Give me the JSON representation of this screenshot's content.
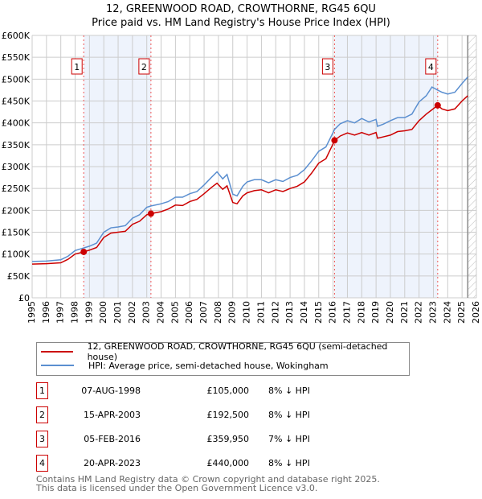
{
  "title": "12, GREENWOOD ROAD, CROWTHORNE, RG45 6QU",
  "subtitle": "Price paid vs. HM Land Registry's House Price Index (HPI)",
  "chart_data": {
    "type": "line",
    "xlim": [
      1995,
      2026
    ],
    "ylim": [
      0,
      600000
    ],
    "x_ticks": [
      "1995",
      "1996",
      "1997",
      "1998",
      "1999",
      "2000",
      "2001",
      "2002",
      "2003",
      "2004",
      "2005",
      "2006",
      "2007",
      "2008",
      "2009",
      "2010",
      "2011",
      "2012",
      "2013",
      "2014",
      "2015",
      "2016",
      "2017",
      "2018",
      "2019",
      "2020",
      "2021",
      "2022",
      "2023",
      "2024",
      "2025",
      "2026"
    ],
    "y_ticks": [
      {
        "v": 0,
        "l": "£0"
      },
      {
        "v": 50000,
        "l": "£50K"
      },
      {
        "v": 100000,
        "l": "£100K"
      },
      {
        "v": 150000,
        "l": "£150K"
      },
      {
        "v": 200000,
        "l": "£200K"
      },
      {
        "v": 250000,
        "l": "£250K"
      },
      {
        "v": 300000,
        "l": "£300K"
      },
      {
        "v": 350000,
        "l": "£350K"
      },
      {
        "v": 400000,
        "l": "£400K"
      },
      {
        "v": 450000,
        "l": "£450K"
      },
      {
        "v": 500000,
        "l": "£500K"
      },
      {
        "v": 550000,
        "l": "£550K"
      },
      {
        "v": 600000,
        "l": "£600K"
      }
    ],
    "data_end": 2025.4,
    "shaded_ranges": [
      [
        1998.6,
        2003.29
      ],
      [
        2016.1,
        2023.3
      ]
    ],
    "series": [
      {
        "name": "12, GREENWOOD ROAD, CROWTHORNE, RG45 6QU (semi-detached house)",
        "color": "#cc0000",
        "x": [
          1995,
          1996,
          1997,
          1997.5,
          1998,
          1998.6,
          1999,
          1999.5,
          2000,
          2000.5,
          2001,
          2001.5,
          2002,
          2002.5,
          2003,
          2003.3,
          2004,
          2004.5,
          2005,
          2005.5,
          2006,
          2006.5,
          2007,
          2007.5,
          2007.9,
          2008.3,
          2008.6,
          2009,
          2009.3,
          2009.7,
          2010,
          2010.5,
          2011,
          2011.5,
          2012,
          2012.5,
          2013,
          2013.5,
          2014,
          2014.5,
          2015,
          2015.5,
          2016,
          2016.1,
          2016.5,
          2017,
          2017.5,
          2018,
          2018.5,
          2019,
          2019.1,
          2019.5,
          2020,
          2020.5,
          2021,
          2021.5,
          2022,
          2022.5,
          2022.9,
          2023.3,
          2023.6,
          2024,
          2024.5,
          2025,
          2025.4
        ],
        "y": [
          77000,
          78000,
          80000,
          88000,
          100000,
          105000,
          109000,
          115000,
          138000,
          148000,
          150000,
          152000,
          168000,
          175000,
          190000,
          192500,
          197000,
          203000,
          212000,
          211000,
          220000,
          225000,
          238000,
          252000,
          262000,
          248000,
          256000,
          218000,
          215000,
          233000,
          240000,
          245000,
          247000,
          240000,
          247000,
          243000,
          250000,
          255000,
          265000,
          285000,
          308000,
          318000,
          352000,
          359950,
          370000,
          377000,
          372000,
          378000,
          372000,
          378000,
          365000,
          368000,
          372000,
          380000,
          382000,
          385000,
          405000,
          420000,
          430000,
          440000,
          432000,
          428000,
          432000,
          450000,
          462000
        ]
      },
      {
        "name": "HPI: Average price, semi-detached house, Wokingham",
        "color": "#5b8fd0",
        "x": [
          1995,
          1996,
          1997,
          1997.5,
          1998,
          1998.6,
          1999,
          1999.5,
          2000,
          2000.5,
          2001,
          2001.5,
          2002,
          2002.5,
          2003,
          2003.3,
          2004,
          2004.5,
          2005,
          2005.5,
          2006,
          2006.5,
          2007,
          2007.5,
          2007.9,
          2008.3,
          2008.6,
          2009,
          2009.3,
          2009.7,
          2010,
          2010.5,
          2011,
          2011.5,
          2012,
          2012.5,
          2013,
          2013.5,
          2014,
          2014.5,
          2015,
          2015.5,
          2016,
          2016.1,
          2016.5,
          2017,
          2017.5,
          2018,
          2018.5,
          2019,
          2019.1,
          2019.5,
          2020,
          2020.5,
          2021,
          2021.5,
          2022,
          2022.5,
          2022.9,
          2023.3,
          2023.6,
          2024,
          2024.5,
          2025,
          2025.4
        ],
        "y": [
          83000,
          84000,
          87000,
          95000,
          108000,
          114000,
          118000,
          125000,
          150000,
          160000,
          162000,
          165000,
          182000,
          190000,
          207000,
          210000,
          215000,
          220000,
          230000,
          230000,
          238000,
          243000,
          258000,
          275000,
          288000,
          272000,
          282000,
          237000,
          233000,
          255000,
          265000,
          270000,
          270000,
          263000,
          270000,
          266000,
          275000,
          280000,
          293000,
          313000,
          335000,
          345000,
          378000,
          385000,
          398000,
          405000,
          400000,
          410000,
          402000,
          408000,
          392000,
          397000,
          405000,
          412000,
          412000,
          420000,
          448000,
          462000,
          482000,
          475000,
          470000,
          466000,
          470000,
          490000,
          505000
        ]
      }
    ],
    "sales": [
      {
        "n": "1",
        "x": 1998.6,
        "y": 105000
      },
      {
        "n": "2",
        "x": 2003.29,
        "y": 192500
      },
      {
        "n": "3",
        "x": 2016.1,
        "y": 359950
      },
      {
        "n": "4",
        "x": 2023.3,
        "y": 440000
      }
    ]
  },
  "legend": {
    "property": "12, GREENWOOD ROAD, CROWTHORNE, RG45 6QU (semi-detached house)",
    "hpi": "HPI: Average price, semi-detached house, Wokingham"
  },
  "transactions": [
    {
      "n": "1",
      "date": "07-AUG-1998",
      "price": "£105,000",
      "hpi": "8% ↓ HPI"
    },
    {
      "n": "2",
      "date": "15-APR-2003",
      "price": "£192,500",
      "hpi": "8% ↓ HPI"
    },
    {
      "n": "3",
      "date": "05-FEB-2016",
      "price": "£359,950",
      "hpi": "7% ↓ HPI"
    },
    {
      "n": "4",
      "date": "20-APR-2023",
      "price": "£440,000",
      "hpi": "8% ↓ HPI"
    }
  ],
  "footer": {
    "line1": "Contains HM Land Registry data © Crown copyright and database right 2025.",
    "line2": "This data is licensed under the Open Government Licence v3.0."
  }
}
